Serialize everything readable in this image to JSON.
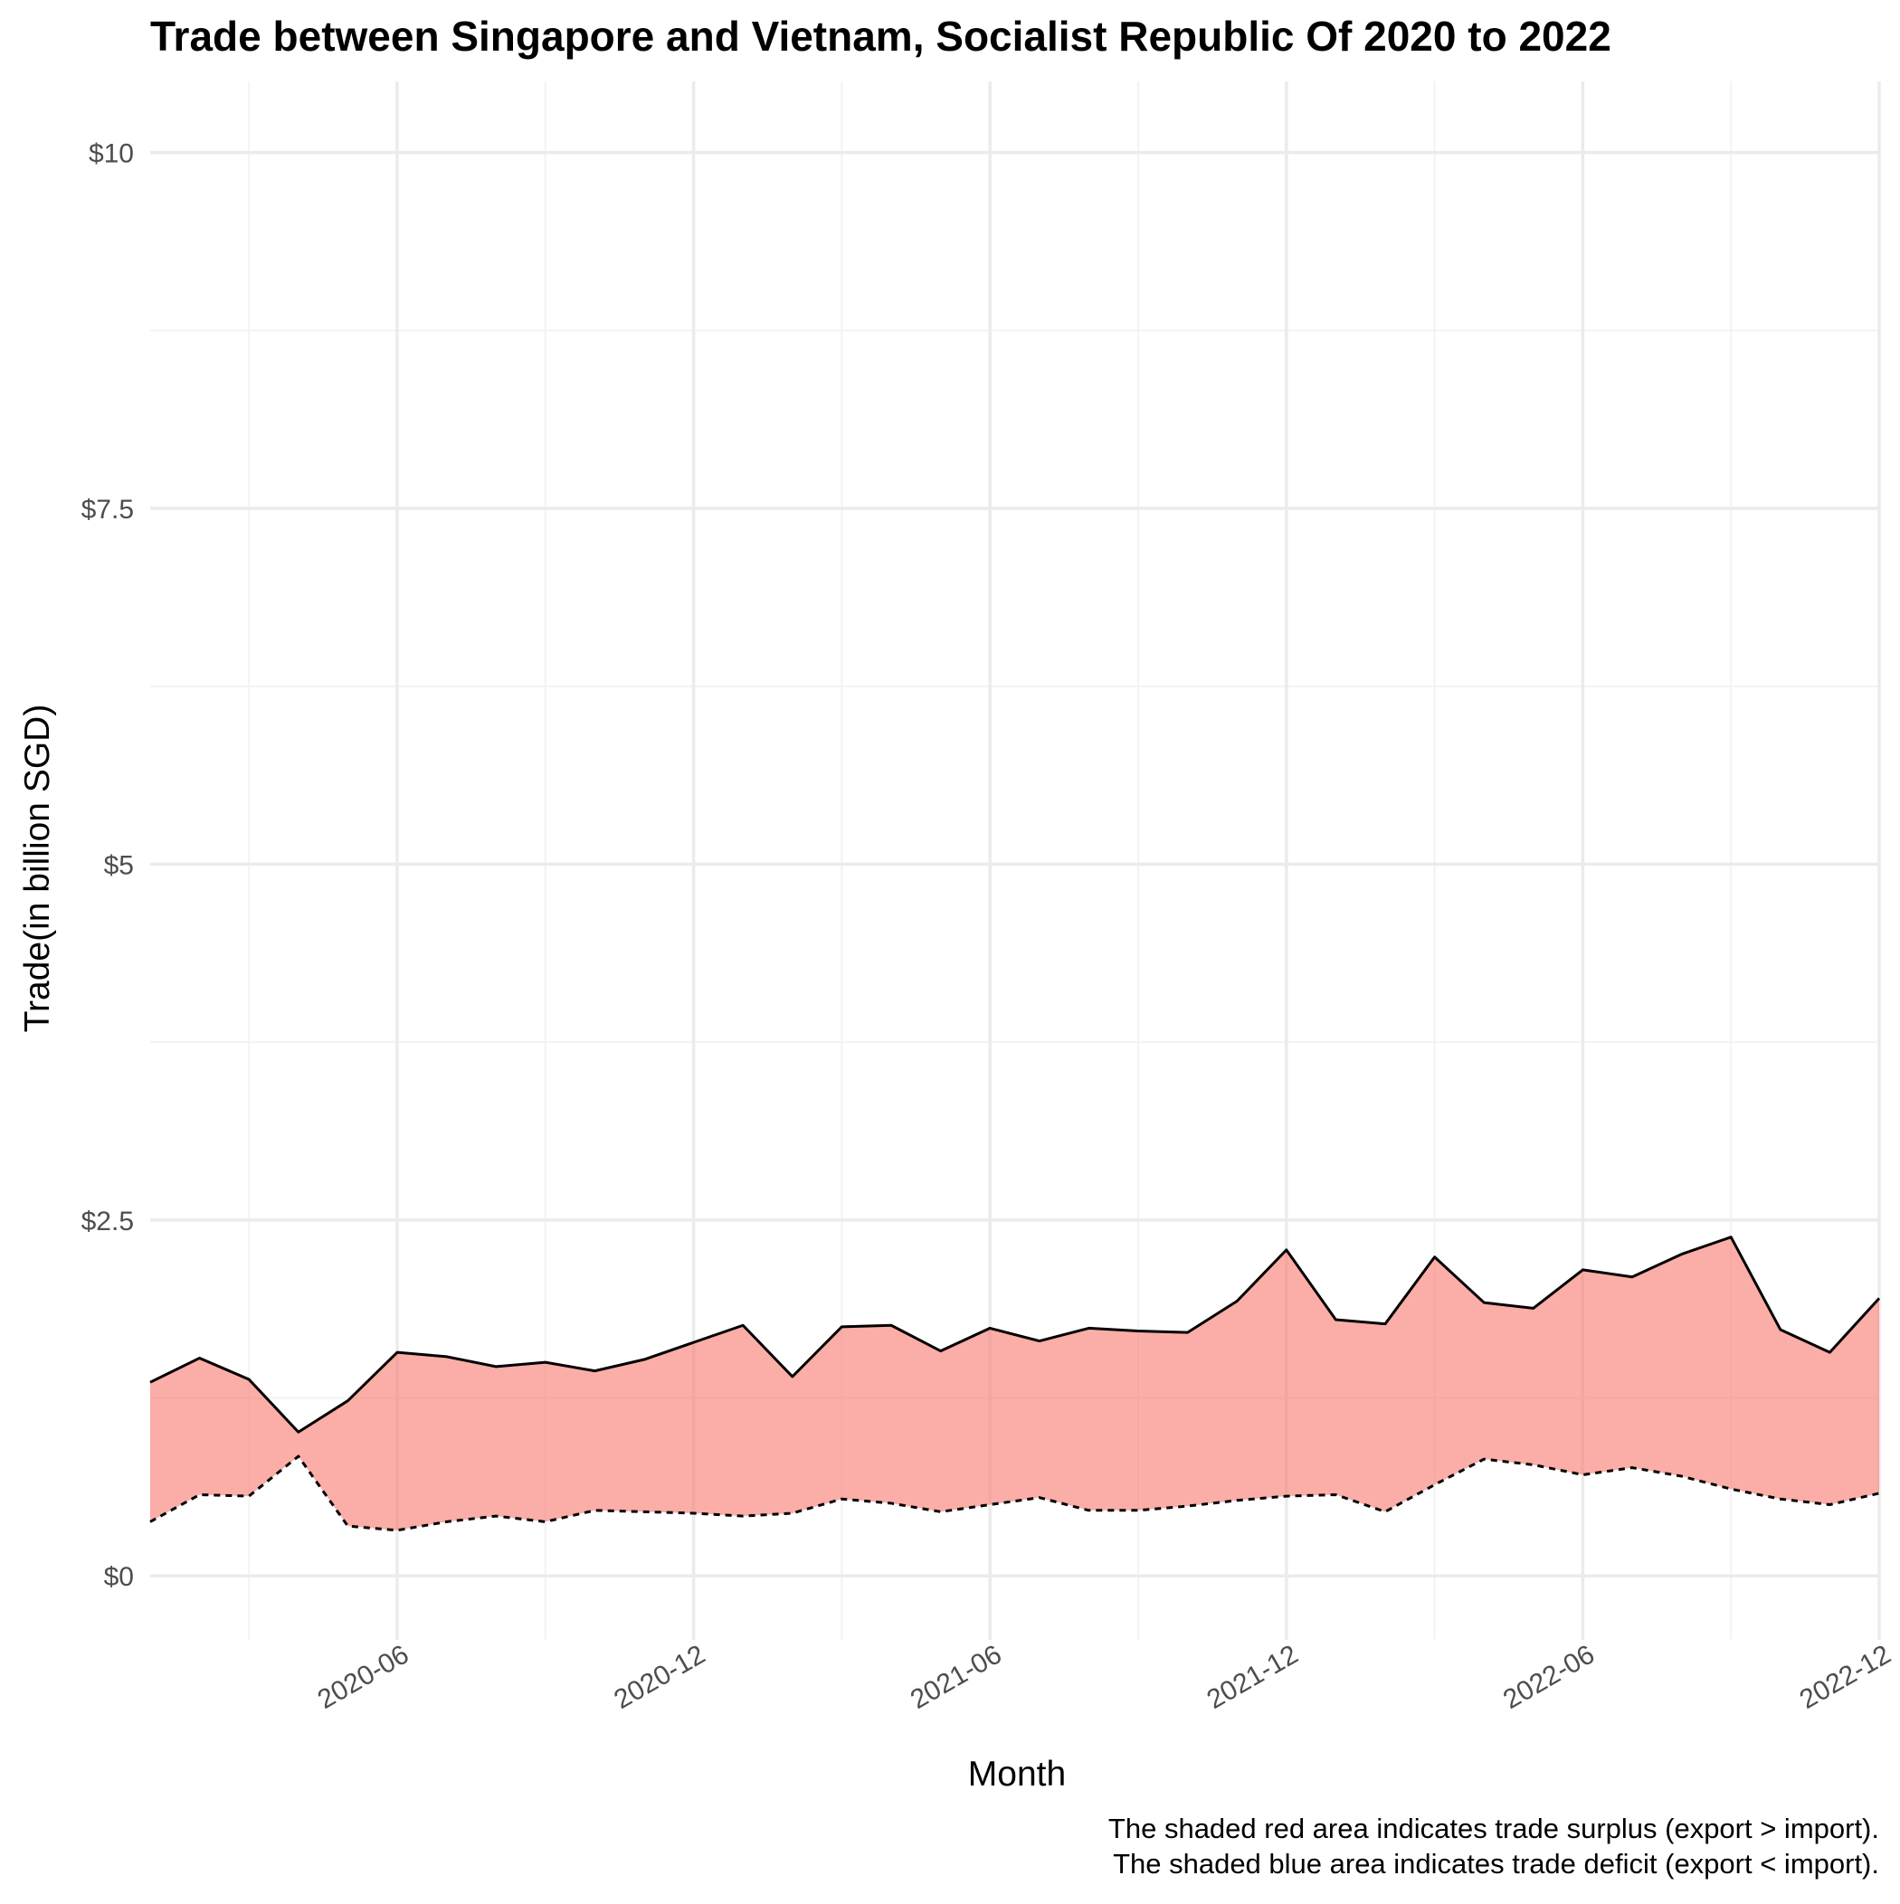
{
  "chart_data": {
    "type": "area",
    "title": "Trade between Singapore and Vietnam, Socialist Republic Of  2020 to 2022",
    "xlabel": "Month",
    "ylabel": "Trade(in billion SGD)",
    "ylim": [
      -0.45,
      10.5
    ],
    "xlim": [
      "2020-01",
      "2022-12"
    ],
    "yticks": [
      0,
      2.5,
      5,
      7.5,
      10
    ],
    "ytick_labels": [
      "$0",
      "$2.5",
      "$5",
      "$7.5",
      "$10"
    ],
    "xticks": [
      "2020-06",
      "2020-12",
      "2021-06",
      "2021-12",
      "2022-06",
      "2022-12"
    ],
    "xtick_labels": [
      "2020-06",
      "2020-12",
      "2021-06",
      "2021-12",
      "2022-06",
      "2022-12"
    ],
    "grid": true,
    "x": [
      "2020-01",
      "2020-02",
      "2020-03",
      "2020-04",
      "2020-05",
      "2020-06",
      "2020-07",
      "2020-08",
      "2020-09",
      "2020-10",
      "2020-11",
      "2020-12",
      "2021-01",
      "2021-02",
      "2021-03",
      "2021-04",
      "2021-05",
      "2021-06",
      "2021-07",
      "2021-08",
      "2021-09",
      "2021-10",
      "2021-11",
      "2021-12",
      "2022-01",
      "2022-02",
      "2022-03",
      "2022-04",
      "2022-05",
      "2022-06",
      "2022-07",
      "2022-08",
      "2022-09",
      "2022-10",
      "2022-11",
      "2022-12"
    ],
    "series": [
      {
        "values": [
          1.36,
          1.53,
          1.38,
          1.01,
          1.23,
          1.57,
          1.54,
          1.47,
          1.5,
          1.44,
          1.52,
          1.64,
          1.76,
          1.4,
          1.75,
          1.76,
          1.58,
          1.74,
          1.65,
          1.74,
          1.72,
          1.71,
          1.93,
          2.29,
          1.8,
          1.77,
          2.24,
          1.92,
          1.88,
          2.15,
          2.1,
          2.26,
          2.38,
          1.73,
          1.57,
          1.95
        ],
        "line_style": "solid"
      },
      {
        "values": [
          0.38,
          0.57,
          0.56,
          0.84,
          0.35,
          0.32,
          0.38,
          0.42,
          0.38,
          0.46,
          0.45,
          0.44,
          0.42,
          0.44,
          0.54,
          0.51,
          0.45,
          0.5,
          0.55,
          0.46,
          0.46,
          0.49,
          0.53,
          0.56,
          0.57,
          0.45,
          0.64,
          0.82,
          0.78,
          0.71,
          0.76,
          0.7,
          0.61,
          0.54,
          0.5,
          0.58
        ],
        "line_style": "dashed"
      }
    ],
    "fill": {
      "surplus_color": "#F8766D",
      "deficit_color": "#00BFC4",
      "opacity": 0.6
    },
    "caption_lines": [
      "The shaded red area indicates trade surplus (export > import).",
      "The shaded blue area indicates trade deficit (export < import)."
    ],
    "colors": {
      "grid_major": "#ebebeb",
      "grid_minor": "#f3f3f3",
      "line": "#000000",
      "tick_text": "#4d4d4d"
    }
  }
}
